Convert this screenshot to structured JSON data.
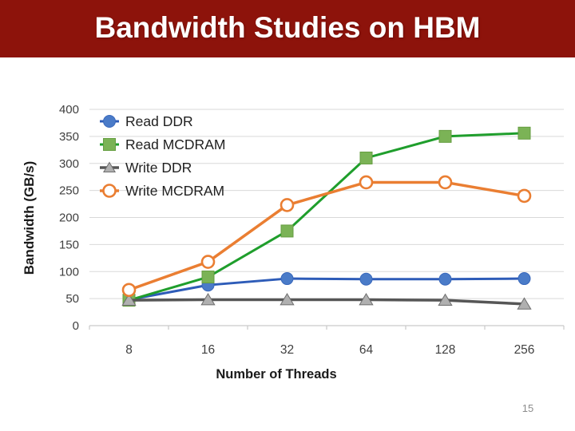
{
  "slide": {
    "title": "Bandwidth Studies on HBM",
    "page_number": "15"
  },
  "theme": {
    "header_bg": "#8D130B",
    "header_text": "#FFFFFF",
    "page_number_color": "#8C8C8C",
    "gridline_color": "#D9D9D9",
    "axis_line_color": "#C9C9C9",
    "tick_label_color": "#3F3F3F",
    "axis_title_color": "#1A1A1A",
    "legend_text_color": "#1F1F1F"
  },
  "chart_data": {
    "type": "line",
    "title": "",
    "xlabel": "Number of Threads",
    "ylabel": "Bandwidth (GB/s)",
    "categories": [
      "8",
      "16",
      "32",
      "64",
      "128",
      "256"
    ],
    "series": [
      {
        "name": "Read DDR",
        "marker": "circle",
        "line_color": "#2E5CB8",
        "marker_fill": "#4A7BC8",
        "marker_stroke": "#3A69BC",
        "line_width": 3,
        "values": [
          48,
          75,
          87,
          86,
          86,
          87
        ]
      },
      {
        "name": "Read MCDRAM",
        "marker": "square",
        "line_color": "#1F9E2C",
        "marker_fill": "#7BB356",
        "marker_stroke": "#669E41",
        "line_width": 3,
        "values": [
          47,
          90,
          175,
          310,
          350,
          356
        ]
      },
      {
        "name": "Write DDR",
        "marker": "triangle",
        "line_color": "#565656",
        "marker_fill": "#B0B0B0",
        "marker_stroke": "#6E6E6E",
        "line_width": 3.5,
        "values": [
          47,
          48,
          48,
          48,
          47,
          40
        ]
      },
      {
        "name": "Write MCDRAM",
        "marker": "open-circle",
        "line_color": "#EA7E32",
        "marker_fill": "#FFFFFF",
        "marker_stroke": "#EA7E32",
        "line_width": 3.5,
        "values": [
          66,
          118,
          223,
          265,
          265,
          240
        ]
      }
    ],
    "ylim": [
      0,
      400
    ],
    "ytick_step": 50,
    "grid": "horizontal-only",
    "legend_position": "top-left-inside"
  }
}
